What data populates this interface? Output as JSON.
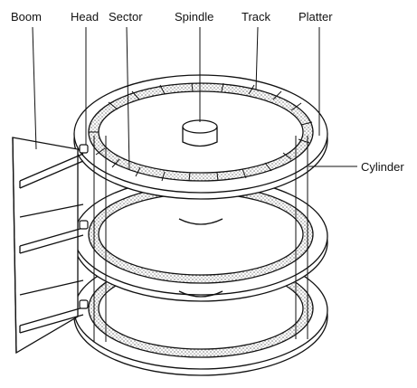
{
  "labels": {
    "boom": "Boom",
    "head": "Head",
    "sector": "Sector",
    "spindle": "Spindle",
    "track": "Track",
    "platter": "Platter",
    "cylinder": "Cylinder"
  },
  "platter_count": 3,
  "colors": {
    "line": "#111111",
    "stipple": "#bdbdbd",
    "background": "#ffffff"
  }
}
